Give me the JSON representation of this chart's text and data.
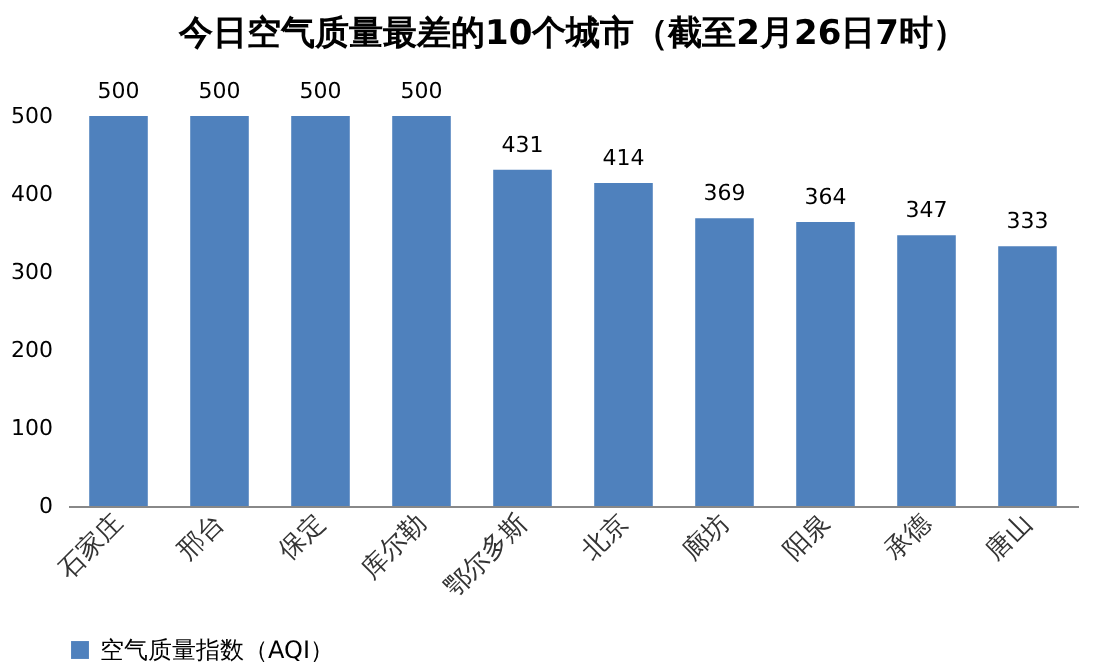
{
  "chart_data": {
    "type": "bar",
    "title": "今日空气质量最差的10个城市（截至2月26日7时）",
    "categories": [
      "石家庄",
      "邢台",
      "保定",
      "库尔勒",
      "鄂尔多斯",
      "北京",
      "廊坊",
      "阳泉",
      "承德",
      "唐山"
    ],
    "series": [
      {
        "name": "空气质量指数（AQI）",
        "color": "#4f81bd",
        "values": [
          500,
          500,
          500,
          500,
          431,
          414,
          369,
          364,
          347,
          333
        ]
      }
    ],
    "ylim": [
      0,
      500
    ],
    "yticks": [
      0,
      100,
      200,
      300,
      400,
      500
    ],
    "grid": false,
    "legend": "bottom",
    "data_labels": true
  }
}
